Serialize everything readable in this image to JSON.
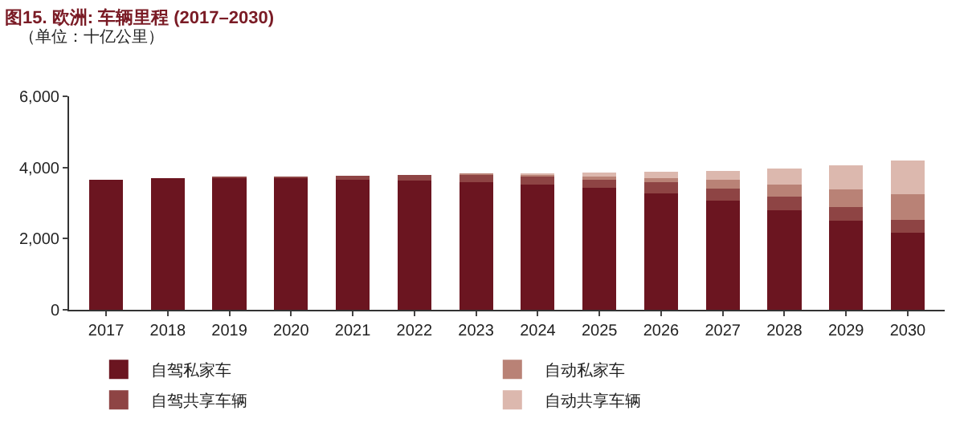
{
  "chart_data": {
    "type": "bar",
    "title": "图15. 欧洲: 车辆里程 (2017–2030)",
    "subtitle": "（单位：十亿公里）",
    "categories": [
      "2017",
      "2018",
      "2019",
      "2020",
      "2021",
      "2022",
      "2023",
      "2024",
      "2025",
      "2026",
      "2027",
      "2028",
      "2029",
      "2030"
    ],
    "stacked": true,
    "ylim": [
      0,
      6000
    ],
    "yticks": [
      {
        "value": 0,
        "label": "0"
      },
      {
        "value": 2000,
        "label": "2,000"
      },
      {
        "value": 4000,
        "label": "4,000"
      },
      {
        "value": 6000,
        "label": "6,000"
      }
    ],
    "legend": "bottom",
    "series": [
      {
        "name": "自驾私家车",
        "color": "#6b1520",
        "values": [
          3650,
          3690,
          3700,
          3700,
          3680,
          3640,
          3580,
          3510,
          3430,
          3260,
          3070,
          2800,
          2510,
          2170
        ]
      },
      {
        "name": "自驾共享车辆",
        "color": "#8e4444",
        "values": [
          0,
          0,
          10,
          30,
          80,
          150,
          210,
          240,
          260,
          330,
          340,
          390,
          380,
          350
        ]
      },
      {
        "name": "自动私家车",
        "color": "#b98276",
        "values": [
          0,
          0,
          0,
          0,
          0,
          0,
          10,
          40,
          80,
          120,
          240,
          320,
          500,
          730
        ]
      },
      {
        "name": "自动共享车辆",
        "color": "#dcb8ae",
        "values": [
          0,
          0,
          0,
          0,
          0,
          0,
          0,
          20,
          80,
          170,
          250,
          470,
          680,
          950
        ]
      }
    ]
  }
}
